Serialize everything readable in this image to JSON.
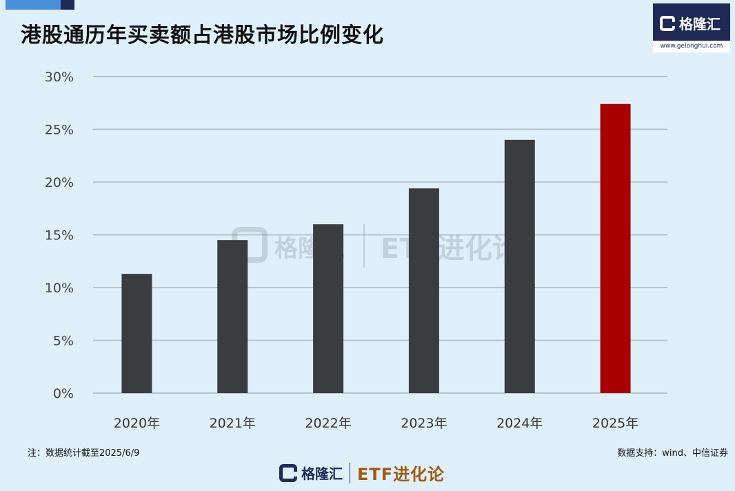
{
  "title": "港股通历年买卖额占港股市场比例变化",
  "logo": {
    "name": "格隆汇",
    "url": "www.gelonghui.com"
  },
  "watermark": {
    "brand": "格隆汇",
    "url": "www.gelonghui.com",
    "series": "ETF进化论"
  },
  "footnote": "注：数据统计截至2025/6/9",
  "source": "数据支持：wind、中信证券",
  "bottom_brand": {
    "name": "格隆汇",
    "url": "www.gelonghui.com",
    "series": "ETF进化论"
  },
  "colors": {
    "bar": "#3a3d40",
    "highlight": "#a80000",
    "grid": "#b9c4cc",
    "background": "#dff0fb"
  },
  "chart_data": {
    "type": "bar",
    "categories": [
      "2020年",
      "2021年",
      "2022年",
      "2023年",
      "2024年",
      "2025年"
    ],
    "values": [
      11.3,
      14.5,
      16.0,
      19.4,
      24.0,
      27.4
    ],
    "highlight_index": 5,
    "ylim": [
      0,
      30
    ],
    "yticks": [
      "0%",
      "5%",
      "10%",
      "15%",
      "20%",
      "25%",
      "30%"
    ],
    "grid": true,
    "title": "港股通历年买卖额占港股市场比例变化",
    "xlabel": "",
    "ylabel": ""
  }
}
